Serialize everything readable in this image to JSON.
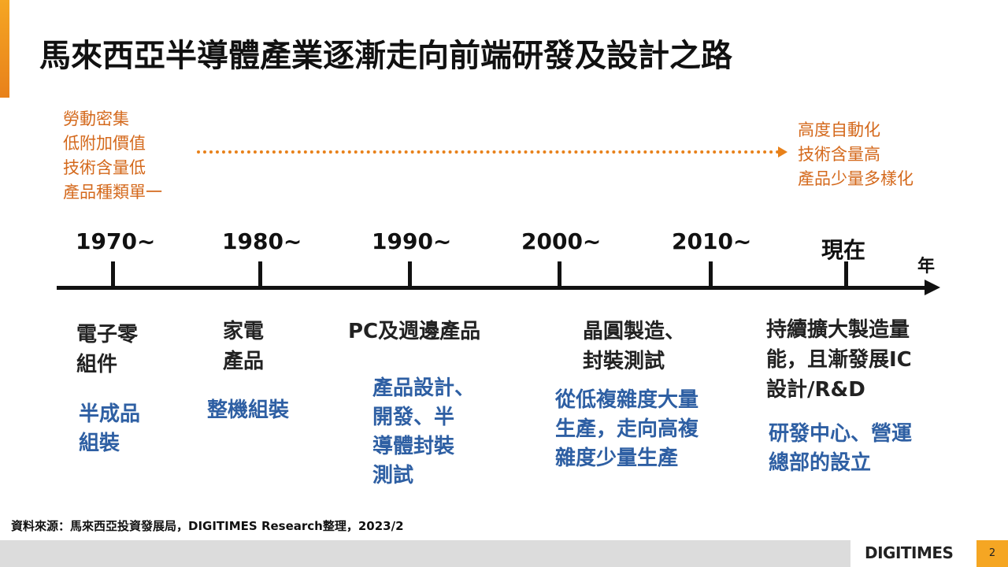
{
  "title": "馬來西亞半導體產業逐漸走向前端研發及設計之路",
  "left_traits": [
    "勞動密集",
    "低附加價值",
    "技術含量低",
    "產品種類單一"
  ],
  "right_traits": [
    "高度自動化",
    "技術含量高",
    "產品少量多樣化"
  ],
  "axis_unit": "年",
  "eras": [
    {
      "label": "1970~",
      "product": [
        "電子零",
        "組件"
      ],
      "activity": [
        "半成品",
        "組裝"
      ]
    },
    {
      "label": "1980~",
      "product": [
        "家電",
        "產品"
      ],
      "activity": [
        "整機組裝"
      ]
    },
    {
      "label": "1990~",
      "product": [
        "PC及週邊產品"
      ],
      "activity": [
        "產品設計、",
        "開發、半",
        "導體封裝",
        "測試"
      ]
    },
    {
      "label": "2000~",
      "product": [
        "晶圓製造、",
        "封裝測試"
      ],
      "activity": [
        "從低複雜度大量",
        "生產，走向高複",
        "雜度少量生產"
      ]
    },
    {
      "label": "2010~",
      "product": [],
      "activity": []
    },
    {
      "label": "現在",
      "product": [
        "持續擴大製造量",
        "能，且漸發展IC",
        "設計/R&D"
      ],
      "activity": [
        "研發中心、營運",
        "總部的設立"
      ]
    }
  ],
  "source": "資料來源：馬來西亞投資發展局，DIGITIMES Research整理，2023/2",
  "logo": "DIGITIMES",
  "page_number": "2",
  "colors": {
    "accent": "#f5a623",
    "orange_text": "#d4691c",
    "blue_text": "#2e5fa3"
  }
}
